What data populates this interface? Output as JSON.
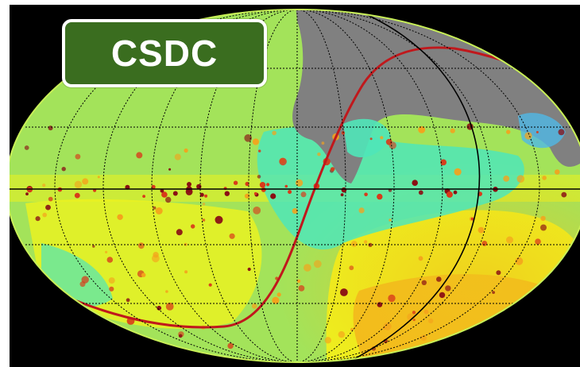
{
  "badge": {
    "label": "CSDC"
  },
  "map": {
    "projection": "mollweide-all-sky",
    "background_color": "#000000",
    "colors": {
      "base": "#a3e35a",
      "yellow": "#eef21e",
      "orange": "#f4a21c",
      "red": "#d83a1a",
      "dark_red": "#8a0f14",
      "cyan": "#4fe6b8",
      "blue": "#2aa9d9",
      "gray": "#808080",
      "ecliptic_line": "#c0181c",
      "grid_line": "#000000",
      "badge_fill": "#3a6d1f"
    },
    "grid": {
      "meridian_count": 12,
      "parallel_count": 5,
      "style": "dotted"
    }
  }
}
